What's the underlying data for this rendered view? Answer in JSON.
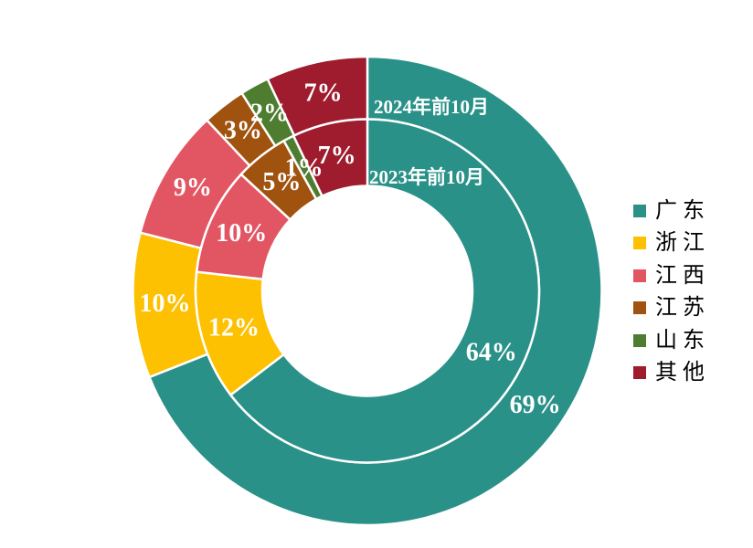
{
  "chart_data": {
    "type": "pie",
    "subtype": "nested_donut",
    "title": "",
    "categories": [
      "广 东",
      "浙 江",
      "江 西",
      "江 苏",
      "山 东",
      "其 他"
    ],
    "colors": [
      "#2a9188",
      "#fdc101",
      "#e25663",
      "#a0520f",
      "#4e7d2f",
      "#9e1c2e"
    ],
    "direction": "clockwise",
    "start_angle_deg": 0,
    "legend_position": "right",
    "label_color": "#ffffff",
    "separator_color": "#ffffff",
    "rings": [
      {
        "name": "2024年前10月",
        "position": "outer",
        "values": [
          69,
          10,
          9,
          3,
          2,
          7
        ],
        "labels": [
          "69%",
          "10%",
          "9%",
          "3%",
          "2%",
          "7%"
        ]
      },
      {
        "name": "2023年前10月",
        "position": "inner",
        "values": [
          64,
          12,
          10,
          5,
          1,
          7
        ],
        "labels": [
          "64%",
          "12%",
          "10%",
          "5%",
          "1%",
          "7%"
        ]
      }
    ]
  },
  "legend": {
    "items": [
      {
        "label": "广 东"
      },
      {
        "label": "浙 江"
      },
      {
        "label": "江 西"
      },
      {
        "label": "江 苏"
      },
      {
        "label": "山 东"
      },
      {
        "label": "其 他"
      }
    ]
  }
}
